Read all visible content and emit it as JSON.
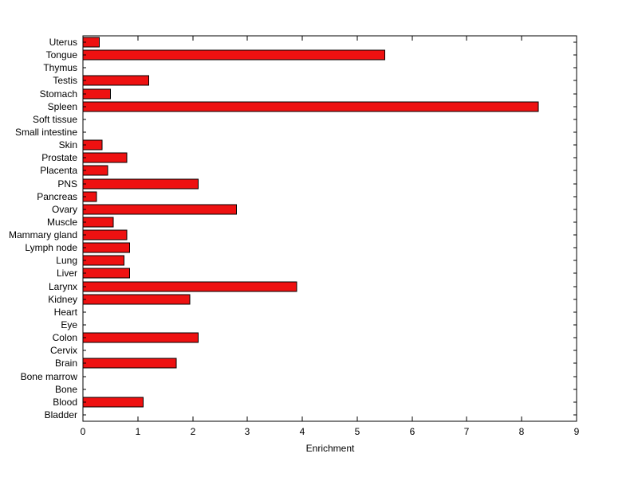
{
  "chart_data": {
    "type": "bar",
    "orientation": "horizontal",
    "title": "",
    "xlabel": "Enrichment",
    "ylabel": "",
    "xlim": [
      0,
      9
    ],
    "xticks": [
      0,
      1,
      2,
      3,
      4,
      5,
      6,
      7,
      8,
      9
    ],
    "grid": false,
    "legend": null,
    "bar_color": "#ee1111",
    "bar_edge_color": "#000000",
    "category_order": "top-to-bottom",
    "categories": [
      "Uterus",
      "Tongue",
      "Thymus",
      "Testis",
      "Stomach",
      "Spleen",
      "Soft tissue",
      "Small intestine",
      "Skin",
      "Prostate",
      "Placenta",
      "PNS",
      "Pancreas",
      "Ovary",
      "Muscle",
      "Mammary gland",
      "Lymph node",
      "Lung",
      "Liver",
      "Larynx",
      "Kidney",
      "Heart",
      "Eye",
      "Colon",
      "Cervix",
      "Brain",
      "Bone marrow",
      "Bone",
      "Blood",
      "Bladder"
    ],
    "values": [
      0.3,
      5.5,
      0,
      1.2,
      0.5,
      8.3,
      0,
      0,
      0.35,
      0.8,
      0.45,
      2.1,
      0.25,
      2.8,
      0.55,
      0.8,
      0.85,
      0.75,
      0.85,
      3.9,
      1.95,
      0,
      0,
      2.1,
      0,
      1.7,
      0,
      0,
      1.1,
      0
    ]
  }
}
